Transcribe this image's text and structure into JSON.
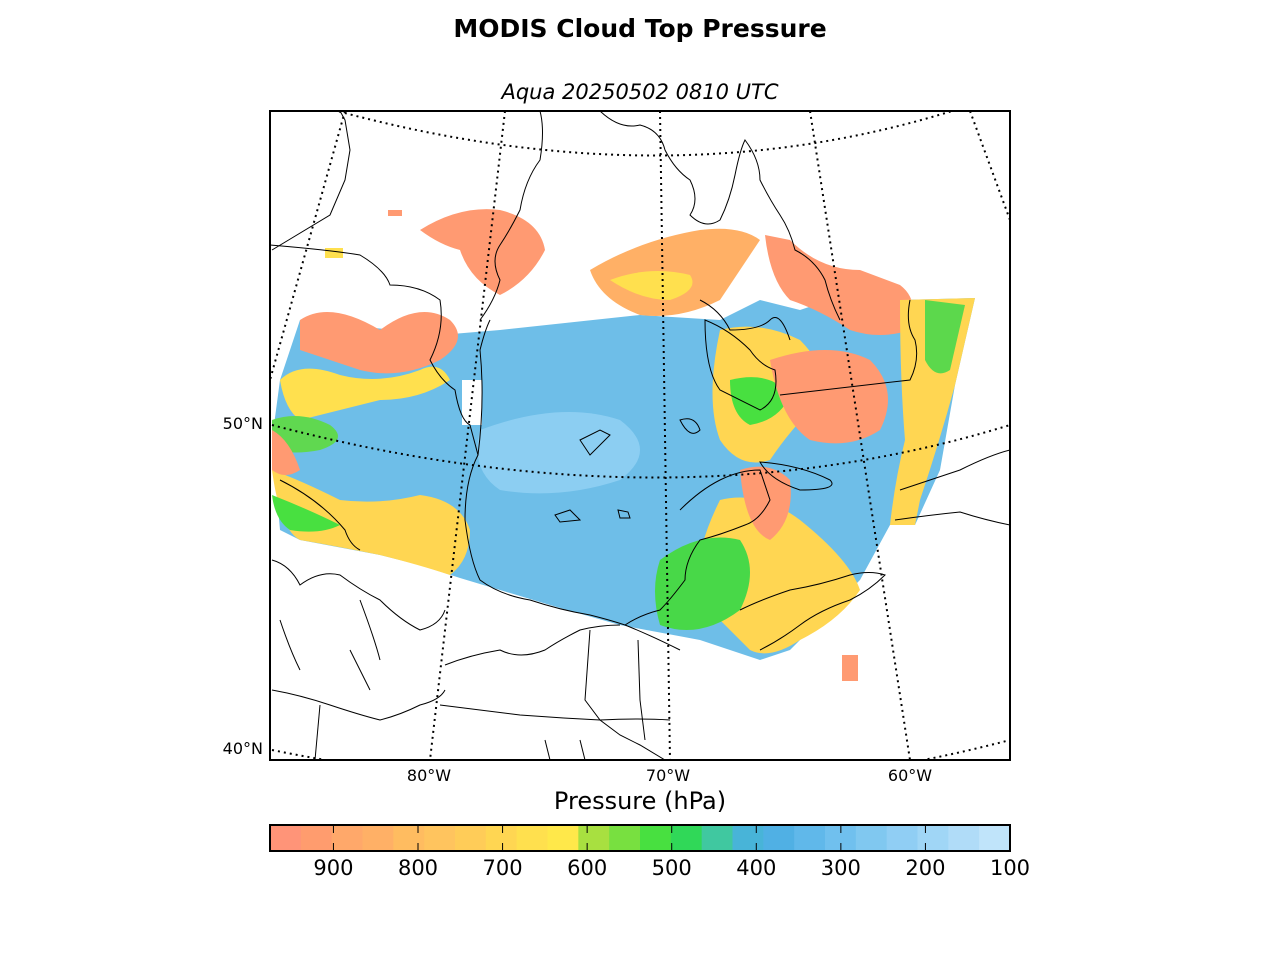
{
  "title": "MODIS Cloud Top Pressure",
  "subtitle": "Aqua 20250502 0810 UTC",
  "map": {
    "lat_labels": [
      "50°N",
      "40°N"
    ],
    "lon_labels": [
      "80°W",
      "70°W",
      "60°W"
    ]
  },
  "colorbar": {
    "label": "Pressure (hPa)",
    "ticks": [
      "900",
      "800",
      "700",
      "600",
      "500",
      "400",
      "300",
      "200",
      "100"
    ],
    "range": [
      975,
      100
    ],
    "colors": [
      "#ff9478",
      "#ff9c6e",
      "#ffa86a",
      "#ffb066",
      "#ffbc60",
      "#ffc45e",
      "#ffcc58",
      "#ffd652",
      "#ffe04e",
      "#ffe84a",
      "#a8e040",
      "#78e040",
      "#48e040",
      "#30d858",
      "#40c8a0",
      "#48b4d8",
      "#50b0e4",
      "#60b8ea",
      "#70c0ee",
      "#80c8f0",
      "#90cef4",
      "#a0d6f6",
      "#b0dcf8",
      "#c0e4fa"
    ]
  }
}
